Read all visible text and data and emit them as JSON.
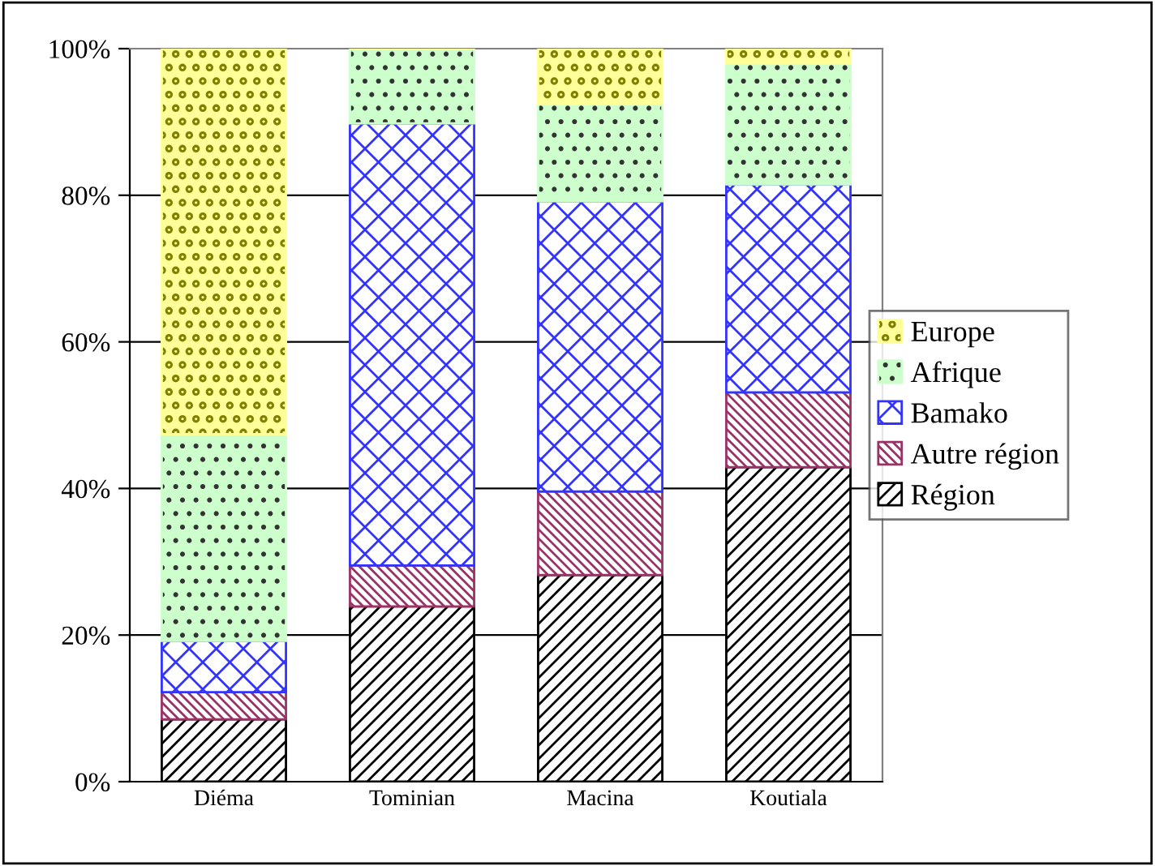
{
  "chart_data": {
    "type": "bar",
    "stacked": true,
    "categories": [
      "Diéma",
      "Tominian",
      "Macina",
      "Koutiala"
    ],
    "series": [
      {
        "name": "Région",
        "color": "#000000",
        "values": [
          8.5,
          23.9,
          28.2,
          42.9
        ]
      },
      {
        "name": "Autre région",
        "color": "#993366",
        "values": [
          3.7,
          5.6,
          11.4,
          10.2
        ]
      },
      {
        "name": "Bamako",
        "color": "#3333ff",
        "values": [
          7.0,
          60.3,
          39.6,
          28.4
        ]
      },
      {
        "name": "Afrique",
        "color": "#ccffcc",
        "values": [
          28.2,
          10.2,
          13.2,
          16.5
        ]
      },
      {
        "name": "Europe",
        "color": "#ffff99",
        "values": [
          52.6,
          0,
          7.6,
          2.0
        ]
      }
    ],
    "ylim": [
      0,
      100
    ],
    "yticks": [
      {
        "value": 0,
        "label": "0%"
      },
      {
        "value": 20,
        "label": "20%"
      },
      {
        "value": 40,
        "label": "40%"
      },
      {
        "value": 60,
        "label": "60%"
      },
      {
        "value": 80,
        "label": "80%"
      },
      {
        "value": 100,
        "label": "100%"
      }
    ],
    "grid": "y",
    "legend": "right"
  }
}
